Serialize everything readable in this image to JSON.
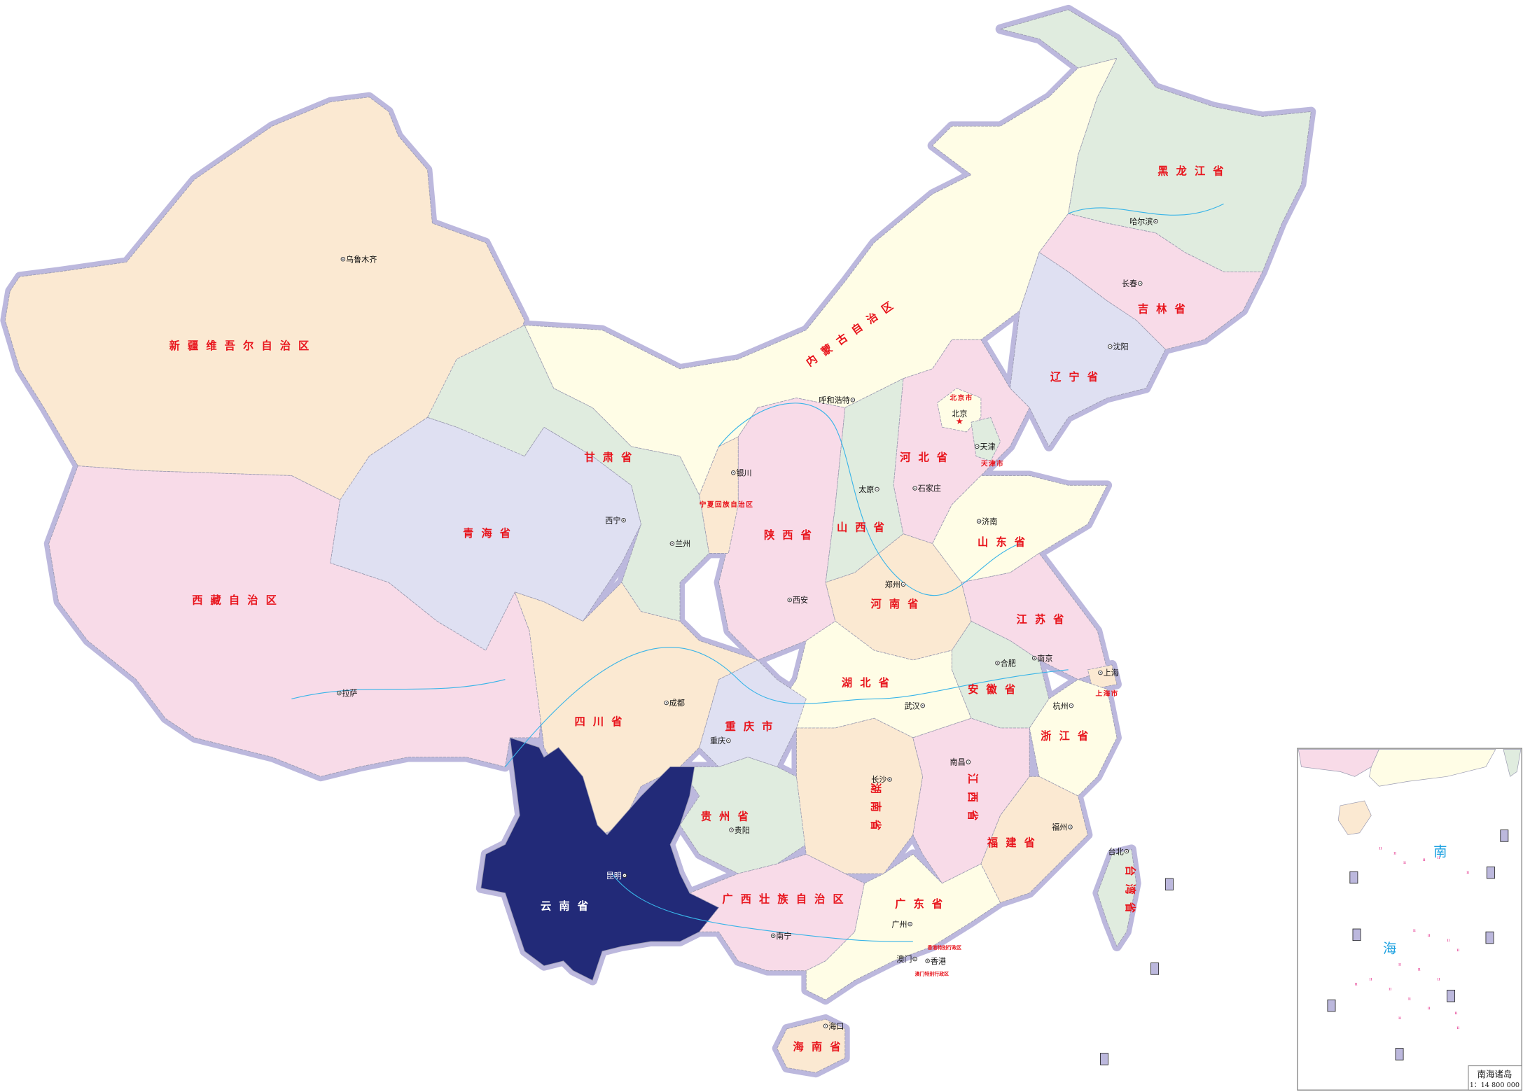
{
  "map": {
    "highlighted": "yunnan",
    "colors": {
      "peach": "#fbe9d2",
      "pink": "#f8dbe8",
      "lavender": "#dfe0f2",
      "green": "#e0ecdf",
      "cream": "#fffde6",
      "highlight": "#222a78",
      "border_glow": "#bcb8dd",
      "river": "#38b4e8",
      "city_marker": "#333333"
    },
    "provinces": [
      {
        "id": "xinjiang",
        "label": "新疆维吾尔自治区",
        "color": "peach"
      },
      {
        "id": "tibet",
        "label": "西藏自治区",
        "color": "pink"
      },
      {
        "id": "qinghai",
        "label": "青海省",
        "color": "lavender"
      },
      {
        "id": "gansu",
        "label": "甘肃省",
        "color": "green"
      },
      {
        "id": "neimenggu",
        "label": "内蒙古自治区",
        "color": "cream"
      },
      {
        "id": "heilongjiang",
        "label": "黑龙江省",
        "color": "green"
      },
      {
        "id": "jilin",
        "label": "吉林省",
        "color": "pink"
      },
      {
        "id": "liaoning",
        "label": "辽宁省",
        "color": "lavender"
      },
      {
        "id": "hebei",
        "label": "河北省",
        "color": "pink"
      },
      {
        "id": "beijing",
        "label": "北京市",
        "color": "cream"
      },
      {
        "id": "tianjin",
        "label": "天津市",
        "color": "green"
      },
      {
        "id": "shanxi",
        "label": "山西省",
        "color": "green"
      },
      {
        "id": "shaanxi",
        "label": "陕西省",
        "color": "pink"
      },
      {
        "id": "ningxia",
        "label": "宁夏回族自治区",
        "color": "peach"
      },
      {
        "id": "shandong",
        "label": "山东省",
        "color": "cream"
      },
      {
        "id": "henan",
        "label": "河南省",
        "color": "peach"
      },
      {
        "id": "jiangsu",
        "label": "江苏省",
        "color": "pink"
      },
      {
        "id": "anhui",
        "label": "安徽省",
        "color": "green"
      },
      {
        "id": "shanghai",
        "label": "上海市",
        "color": "peach"
      },
      {
        "id": "zhejiang",
        "label": "浙江省",
        "color": "cream"
      },
      {
        "id": "hubei",
        "label": "湖北省",
        "color": "cream"
      },
      {
        "id": "chongqing",
        "label": "重庆市",
        "color": "lavender"
      },
      {
        "id": "sichuan",
        "label": "四川省",
        "color": "peach"
      },
      {
        "id": "guizhou",
        "label": "贵州省",
        "color": "green"
      },
      {
        "id": "hunan",
        "label": "湖南省",
        "color": "peach"
      },
      {
        "id": "jiangxi",
        "label": "江西省",
        "color": "pink"
      },
      {
        "id": "fujian",
        "label": "福建省",
        "color": "peach"
      },
      {
        "id": "yunnan",
        "label": "云南省",
        "color": "highlight"
      },
      {
        "id": "guangxi",
        "label": "广西壮族自治区",
        "color": "pink"
      },
      {
        "id": "guangdong",
        "label": "广东省",
        "color": "cream"
      },
      {
        "id": "hainan",
        "label": "海南省",
        "color": "peach"
      },
      {
        "id": "taiwan",
        "label": "台湾省",
        "color": "green"
      }
    ],
    "sar_labels": [
      "香港特别行政区",
      "澳门特别行政区"
    ],
    "cities": [
      {
        "id": "urumqi",
        "name": "乌鲁木齐"
      },
      {
        "id": "lhasa",
        "name": "拉萨"
      },
      {
        "id": "xining",
        "name": "西宁"
      },
      {
        "id": "lanzhou",
        "name": "兰州"
      },
      {
        "id": "yinchuan",
        "name": "银川"
      },
      {
        "id": "hohhot",
        "name": "呼和浩特"
      },
      {
        "id": "beijing",
        "name": "北京",
        "capital": true
      },
      {
        "id": "tianjin",
        "name": "天津"
      },
      {
        "id": "shijiazhuang",
        "name": "石家庄"
      },
      {
        "id": "taiyuan",
        "name": "太原"
      },
      {
        "id": "jinan",
        "name": "济南"
      },
      {
        "id": "zhengzhou",
        "name": "郑州"
      },
      {
        "id": "xian",
        "name": "西安"
      },
      {
        "id": "chengdu",
        "name": "成都"
      },
      {
        "id": "chongqing",
        "name": "重庆"
      },
      {
        "id": "wuhan",
        "name": "武汉"
      },
      {
        "id": "hefei",
        "name": "合肥"
      },
      {
        "id": "nanjing",
        "name": "南京"
      },
      {
        "id": "shanghai",
        "name": "上海"
      },
      {
        "id": "hangzhou",
        "name": "杭州"
      },
      {
        "id": "nanchang",
        "name": "南昌"
      },
      {
        "id": "changsha",
        "name": "长沙"
      },
      {
        "id": "guiyang",
        "name": "贵阳"
      },
      {
        "id": "kunming",
        "name": "昆明"
      },
      {
        "id": "nanning",
        "name": "南宁"
      },
      {
        "id": "guangzhou",
        "name": "广州"
      },
      {
        "id": "macau",
        "name": "澳门"
      },
      {
        "id": "hongkong",
        "name": "香港"
      },
      {
        "id": "fuzhou",
        "name": "福州"
      },
      {
        "id": "taipei",
        "name": "台北"
      },
      {
        "id": "haikou",
        "name": "海口"
      },
      {
        "id": "shenyang",
        "name": "沈阳"
      },
      {
        "id": "changchun",
        "name": "长春"
      },
      {
        "id": "harbin",
        "name": "哈尔滨"
      }
    ],
    "inset": {
      "title": "南海诸岛",
      "scale": "1：14 800 000",
      "sea_label_1": "南",
      "sea_label_2": "海"
    }
  }
}
